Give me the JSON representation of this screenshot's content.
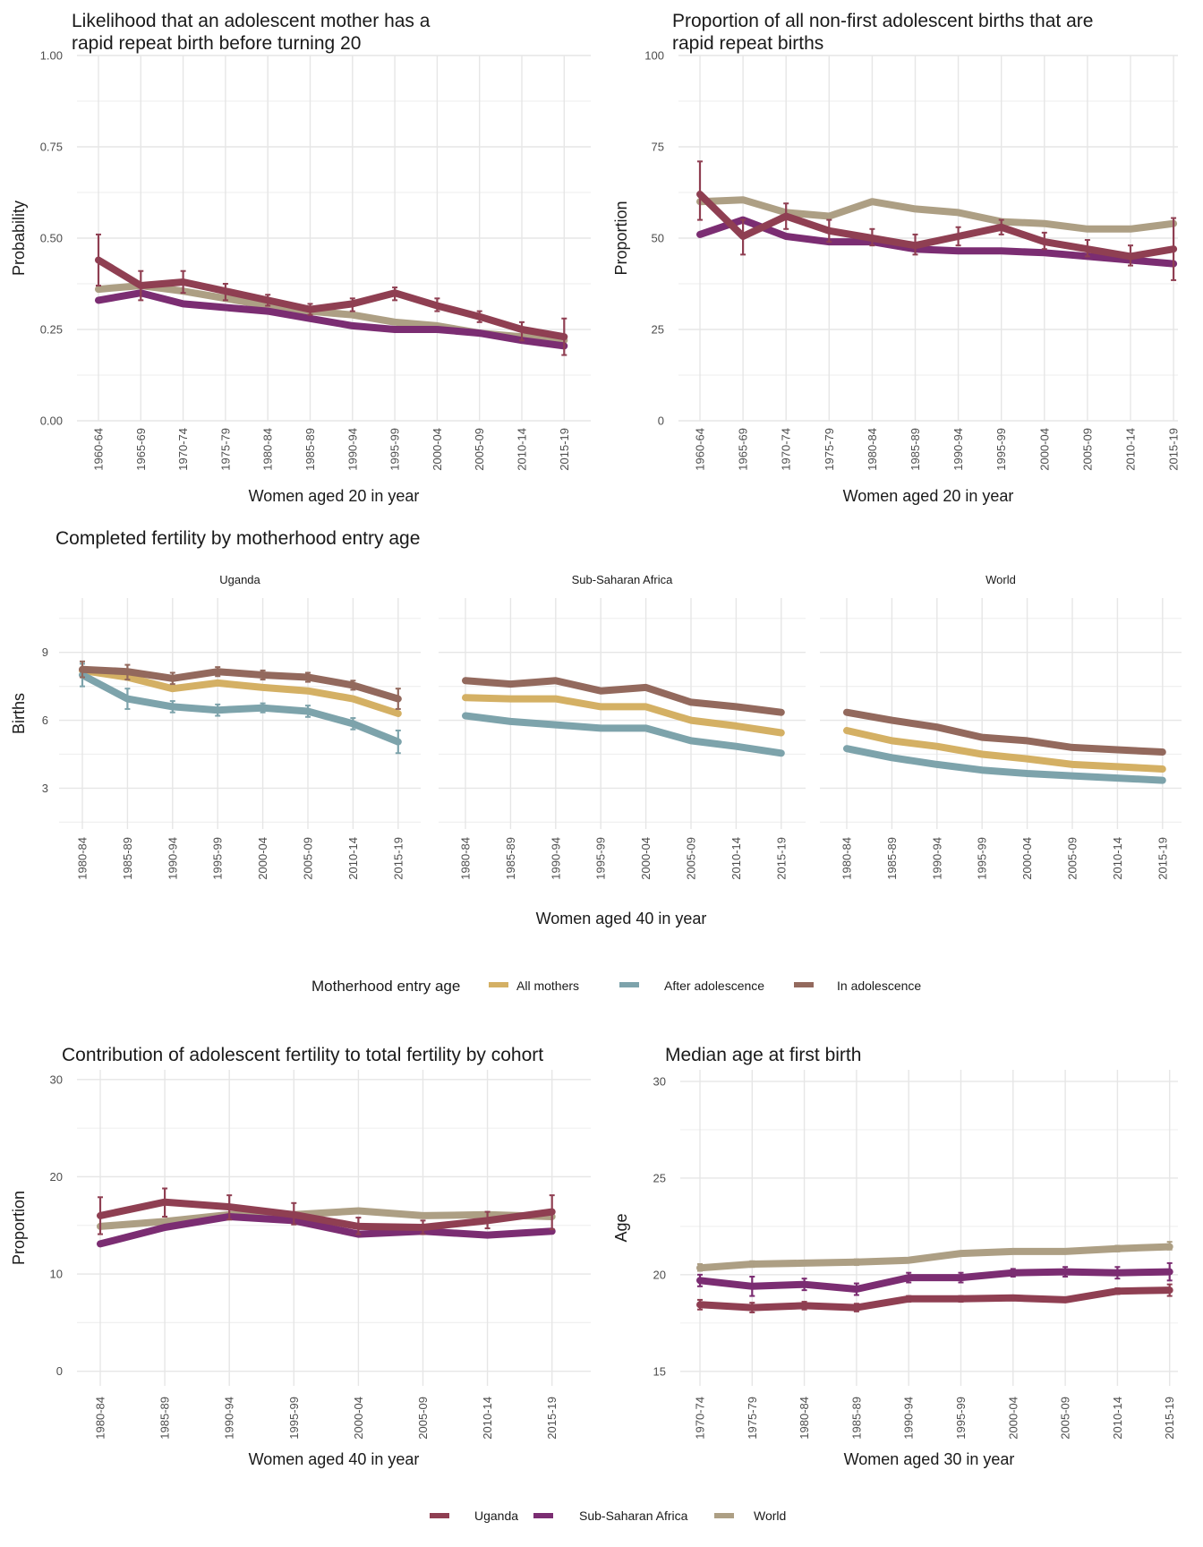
{
  "colors": {
    "Uganda": "#8f3f52",
    "Sub-Saharan Africa": "#7b2d72",
    "World": "#ad9f84",
    "All mothers": "#d4b064",
    "After adolescence": "#7da3ab",
    "In adolescence": "#93695d"
  },
  "legends": {
    "motherhood": {
      "title": "Motherhood entry age",
      "items": [
        "All mothers",
        "After adolescence",
        "In adolescence"
      ]
    },
    "region": {
      "items": [
        "Uganda",
        "Sub-Saharan Africa",
        "World"
      ]
    }
  },
  "chart_data": [
    {
      "id": "p1",
      "type": "line",
      "title_lines": [
        "Likelihood that an adolescent mother has a",
        "rapid repeat birth before turning 20"
      ],
      "xlabel": "Women aged 20 in year",
      "ylabel": "Probability",
      "ylim": [
        0,
        1
      ],
      "yticks": [
        "0.00",
        "0.25",
        "0.50",
        "0.75",
        "1.00"
      ],
      "ytick_values": [
        0,
        0.25,
        0.5,
        0.75,
        1
      ],
      "categories": [
        "1960-64",
        "1965-69",
        "1970-74",
        "1975-79",
        "1980-84",
        "1985-89",
        "1990-94",
        "1995-99",
        "2000-04",
        "2005-09",
        "2010-14",
        "2015-19"
      ],
      "series": [
        {
          "name": "World",
          "values": [
            0.36,
            0.37,
            0.355,
            0.335,
            0.315,
            0.3,
            0.29,
            0.27,
            0.26,
            0.24,
            0.23,
            0.22
          ]
        },
        {
          "name": "Sub-Saharan Africa",
          "values": [
            0.33,
            0.35,
            0.32,
            0.31,
            0.3,
            0.28,
            0.26,
            0.25,
            0.25,
            0.24,
            0.22,
            0.205
          ]
        },
        {
          "name": "Uganda",
          "values": [
            0.44,
            0.37,
            0.38,
            0.355,
            0.33,
            0.305,
            0.32,
            0.35,
            0.315,
            0.285,
            0.25,
            0.23
          ],
          "err_low": [
            0.37,
            0.33,
            0.35,
            0.33,
            0.315,
            0.29,
            0.3,
            0.33,
            0.3,
            0.27,
            0.22,
            0.18
          ],
          "err_high": [
            0.51,
            0.41,
            0.41,
            0.375,
            0.345,
            0.32,
            0.335,
            0.365,
            0.335,
            0.3,
            0.27,
            0.28
          ]
        }
      ]
    },
    {
      "id": "p2",
      "type": "line",
      "title_lines": [
        "Proportion of all non-first adolescent births that are",
        "rapid repeat births"
      ],
      "xlabel": "Women aged 20 in year",
      "ylabel": "Proportion",
      "ylim": [
        0,
        100
      ],
      "yticks": [
        "0",
        "25",
        "50",
        "75",
        "100"
      ],
      "ytick_values": [
        0,
        25,
        50,
        75,
        100
      ],
      "categories": [
        "1960-64",
        "1965-69",
        "1970-74",
        "1975-79",
        "1980-84",
        "1985-89",
        "1990-94",
        "1995-99",
        "2000-04",
        "2005-09",
        "2010-14",
        "2015-19"
      ],
      "series": [
        {
          "name": "World",
          "values": [
            60,
            60.5,
            57,
            56,
            60,
            58,
            57,
            54.5,
            54,
            52.5,
            52.5,
            54
          ]
        },
        {
          "name": "Sub-Saharan Africa",
          "values": [
            51,
            55,
            50.5,
            49,
            49,
            47,
            46.5,
            46.5,
            46,
            45,
            44,
            43
          ]
        },
        {
          "name": "Uganda",
          "values": [
            62,
            50.5,
            56,
            52,
            50,
            48,
            50.5,
            53,
            49,
            47,
            45,
            47
          ],
          "err_low": [
            55,
            45.5,
            52.5,
            49,
            48,
            45.5,
            48,
            51,
            47,
            45,
            42.5,
            38.5
          ],
          "err_high": [
            71,
            55,
            59.5,
            55,
            52.5,
            51,
            53,
            55,
            51.5,
            49.5,
            48,
            55.5
          ]
        }
      ]
    },
    {
      "id": "p3",
      "type": "line",
      "title": "Completed fertility by motherhood entry age",
      "xlabel": "Women aged 40 in year",
      "ylabel": "Births",
      "ylim": [
        1.2,
        11.4
      ],
      "yticks": [
        "3",
        "6",
        "9"
      ],
      "ytick_values": [
        3,
        6,
        9
      ],
      "categories": [
        "1980-84",
        "1985-89",
        "1990-94",
        "1995-99",
        "2000-04",
        "2005-09",
        "2010-14",
        "2015-19"
      ],
      "facets": [
        {
          "name": "Uganda",
          "series": [
            {
              "name": "All mothers",
              "values": [
                8.2,
                7.9,
                7.4,
                7.65,
                7.45,
                7.3,
                6.95,
                6.3
              ]
            },
            {
              "name": "After adolescence",
              "values": [
                8.0,
                6.95,
                6.6,
                6.45,
                6.55,
                6.4,
                5.85,
                5.05
              ],
              "err_low": [
                7.5,
                6.5,
                6.35,
                6.2,
                6.35,
                6.15,
                5.6,
                4.55
              ],
              "err_high": [
                8.5,
                7.4,
                6.85,
                6.7,
                6.75,
                6.65,
                6.1,
                5.55
              ]
            },
            {
              "name": "In adolescence",
              "values": [
                8.25,
                8.15,
                7.85,
                8.15,
                8.0,
                7.9,
                7.55,
                6.95
              ],
              "err_low": [
                7.9,
                7.8,
                7.6,
                7.95,
                7.8,
                7.7,
                7.35,
                6.5
              ],
              "err_high": [
                8.6,
                8.45,
                8.1,
                8.35,
                8.2,
                8.1,
                7.75,
                7.4
              ]
            }
          ]
        },
        {
          "name": "Sub-Saharan Africa",
          "series": [
            {
              "name": "All mothers",
              "values": [
                7.0,
                6.95,
                6.95,
                6.6,
                6.6,
                6.0,
                5.75,
                5.45
              ]
            },
            {
              "name": "After adolescence",
              "values": [
                6.2,
                5.95,
                5.8,
                5.65,
                5.65,
                5.1,
                4.85,
                4.55
              ]
            },
            {
              "name": "In adolescence",
              "values": [
                7.75,
                7.6,
                7.75,
                7.3,
                7.45,
                6.8,
                6.6,
                6.35
              ]
            }
          ]
        },
        {
          "name": "World",
          "series": [
            {
              "name": "All mothers",
              "values": [
                5.55,
                5.1,
                4.85,
                4.5,
                4.3,
                4.05,
                3.95,
                3.85
              ]
            },
            {
              "name": "After adolescence",
              "values": [
                4.75,
                4.35,
                4.05,
                3.8,
                3.65,
                3.55,
                3.45,
                3.35
              ]
            },
            {
              "name": "In adolescence",
              "values": [
                6.35,
                6.0,
                5.7,
                5.25,
                5.1,
                4.8,
                4.7,
                4.6
              ]
            }
          ]
        }
      ]
    },
    {
      "id": "p4",
      "type": "line",
      "title": "Contribution of adolescent fertility to total fertility by cohort",
      "xlabel": "Women aged 40 in year",
      "ylabel": "Proportion",
      "ylim": [
        -1.5,
        31
      ],
      "yticks": [
        "0",
        "10",
        "20",
        "30"
      ],
      "ytick_values": [
        0,
        10,
        20,
        30
      ],
      "categories": [
        "1980-84",
        "1985-89",
        "1990-94",
        "1995-99",
        "2000-04",
        "2005-09",
        "2010-14",
        "2015-19"
      ],
      "series": [
        {
          "name": "World",
          "values": [
            14.9,
            15.4,
            16.1,
            16.1,
            16.5,
            16.0,
            16.1,
            15.9
          ]
        },
        {
          "name": "Sub-Saharan Africa",
          "values": [
            13.1,
            14.8,
            15.9,
            15.5,
            14.1,
            14.4,
            14.0,
            14.4
          ]
        },
        {
          "name": "Uganda",
          "values": [
            16.0,
            17.4,
            16.9,
            16.1,
            14.9,
            14.8,
            15.5,
            16.4
          ],
          "err_low": [
            14.1,
            15.9,
            15.6,
            15.1,
            14.1,
            14.1,
            14.7,
            14.6
          ],
          "err_high": [
            17.9,
            18.8,
            18.1,
            17.3,
            15.8,
            15.5,
            16.4,
            18.1
          ]
        }
      ]
    },
    {
      "id": "p5",
      "type": "line",
      "title": "Median age at first birth",
      "xlabel": "Women aged 30 in year",
      "ylabel": "Age",
      "ylim": [
        14.25,
        30.6
      ],
      "yticks": [
        "15",
        "20",
        "25",
        "30"
      ],
      "ytick_values": [
        15,
        20,
        25,
        30
      ],
      "categories": [
        "1970-74",
        "1975-79",
        "1980-84",
        "1985-89",
        "1990-94",
        "1995-99",
        "2000-04",
        "2005-09",
        "2010-14",
        "2015-19"
      ],
      "series": [
        {
          "name": "World",
          "values": [
            20.35,
            20.55,
            20.6,
            20.65,
            20.75,
            21.1,
            21.2,
            21.2,
            21.35,
            21.45
          ],
          "err_low": [
            20.2,
            20.4,
            20.5,
            20.5,
            20.7,
            21.0,
            21.1,
            21.1,
            21.2,
            21.3
          ],
          "err_high": [
            20.55,
            20.7,
            20.7,
            20.8,
            20.85,
            21.2,
            21.3,
            21.3,
            21.5,
            21.7
          ]
        },
        {
          "name": "Sub-Saharan Africa",
          "values": [
            19.7,
            19.4,
            19.5,
            19.25,
            19.85,
            19.85,
            20.1,
            20.15,
            20.1,
            20.15
          ],
          "err_low": [
            19.4,
            18.9,
            19.2,
            18.95,
            19.6,
            19.6,
            19.9,
            19.9,
            19.8,
            19.7
          ],
          "err_high": [
            20.0,
            19.9,
            19.8,
            19.55,
            20.1,
            20.1,
            20.3,
            20.4,
            20.4,
            20.6
          ]
        },
        {
          "name": "Uganda",
          "values": [
            18.45,
            18.3,
            18.4,
            18.3,
            18.75,
            18.75,
            18.8,
            18.7,
            19.15,
            19.2
          ],
          "err_low": [
            18.2,
            18.05,
            18.2,
            18.1,
            18.6,
            18.6,
            18.7,
            18.6,
            19.0,
            18.9
          ],
          "err_high": [
            18.7,
            18.55,
            18.6,
            18.5,
            18.9,
            18.9,
            18.9,
            18.8,
            19.3,
            19.5
          ]
        }
      ]
    }
  ]
}
